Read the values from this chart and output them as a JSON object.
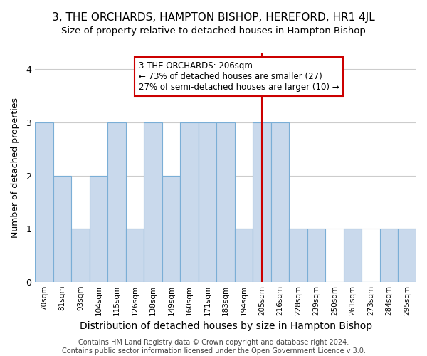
{
  "title": "3, THE ORCHARDS, HAMPTON BISHOP, HEREFORD, HR1 4JL",
  "subtitle": "Size of property relative to detached houses in Hampton Bishop",
  "xlabel": "Distribution of detached houses by size in Hampton Bishop",
  "ylabel": "Number of detached properties",
  "bins": [
    "70sqm",
    "81sqm",
    "93sqm",
    "104sqm",
    "115sqm",
    "126sqm",
    "138sqm",
    "149sqm",
    "160sqm",
    "171sqm",
    "183sqm",
    "194sqm",
    "205sqm",
    "216sqm",
    "228sqm",
    "239sqm",
    "250sqm",
    "261sqm",
    "273sqm",
    "284sqm",
    "295sqm"
  ],
  "values": [
    3,
    2,
    1,
    2,
    3,
    1,
    3,
    2,
    3,
    3,
    3,
    1,
    3,
    3,
    1,
    1,
    0,
    1,
    0,
    1,
    1
  ],
  "bar_color": "#c9d9ec",
  "bar_edge_color": "#7aaed6",
  "reference_line_x": 12,
  "reference_line_color": "#cc0000",
  "annotation_text": "3 THE ORCHARDS: 206sqm\n← 73% of detached houses are smaller (27)\n27% of semi-detached houses are larger (10) →",
  "annotation_box_edge_color": "#cc0000",
  "ylim": [
    0,
    4.3
  ],
  "yticks": [
    0,
    1,
    2,
    3,
    4
  ],
  "footer": "Contains HM Land Registry data © Crown copyright and database right 2024.\nContains public sector information licensed under the Open Government Licence v 3.0.",
  "title_fontsize": 11,
  "subtitle_fontsize": 9.5,
  "xlabel_fontsize": 10,
  "ylabel_fontsize": 9,
  "annotation_fontsize": 8.5,
  "footer_fontsize": 7,
  "bg_color": "#ffffff",
  "grid_color": "#cccccc"
}
